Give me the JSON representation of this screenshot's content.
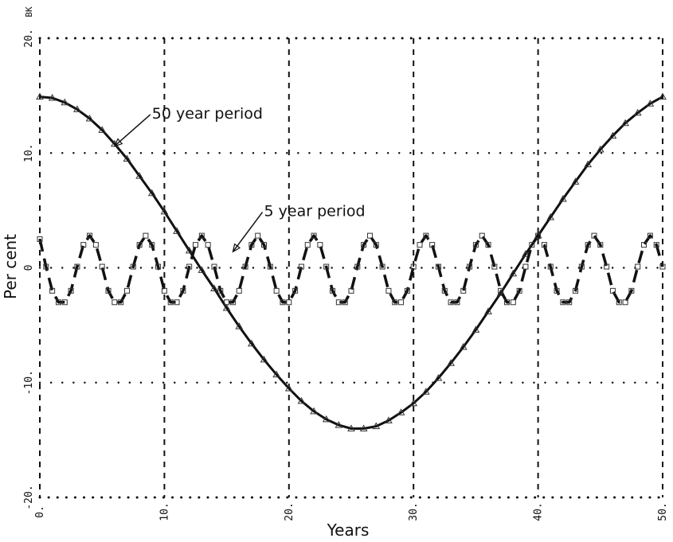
{
  "chart_data": {
    "type": "line",
    "title": "",
    "xlabel": "Years",
    "ylabel": "Per cent",
    "corner_label": "BK",
    "xlim": [
      0,
      50
    ],
    "ylim": [
      -20,
      20
    ],
    "x_ticks": [
      {
        "value": 0,
        "label": "0."
      },
      {
        "value": 10,
        "label": "10."
      },
      {
        "value": 20,
        "label": "20."
      },
      {
        "value": 30,
        "label": "30."
      },
      {
        "value": 40,
        "label": "40."
      },
      {
        "value": 50,
        "label": "50."
      }
    ],
    "y_ticks": [
      {
        "value": 20,
        "label": "20."
      },
      {
        "value": 10,
        "label": "10."
      },
      {
        "value": 0,
        "label": "0"
      },
      {
        "value": -10,
        "label": "-10."
      },
      {
        "value": -20,
        "label": "-20."
      }
    ],
    "grid": true,
    "series": [
      {
        "name": "50 year period",
        "style": "solid",
        "marker": "triangle",
        "x": [
          0,
          1,
          2,
          3,
          4,
          5,
          6,
          7,
          8,
          9,
          10,
          11,
          12,
          13,
          14,
          15,
          16,
          17,
          18,
          19,
          20,
          21,
          22,
          23,
          24,
          25,
          26,
          27,
          28,
          29,
          30,
          31,
          32,
          33,
          34,
          35,
          36,
          37,
          38,
          39,
          40,
          41,
          42,
          43,
          44,
          45,
          46,
          47,
          48,
          49,
          50
        ],
        "y": [
          14.9,
          14.8,
          14.4,
          13.8,
          13.0,
          12.0,
          10.8,
          9.5,
          8.0,
          6.5,
          4.9,
          3.2,
          1.5,
          -0.2,
          -1.8,
          -3.5,
          -5.1,
          -6.6,
          -8.0,
          -9.3,
          -10.5,
          -11.6,
          -12.5,
          -13.2,
          -13.7,
          -14.0,
          -14.0,
          -13.8,
          -13.3,
          -12.6,
          -11.8,
          -10.8,
          -9.6,
          -8.3,
          -6.9,
          -5.4,
          -3.8,
          -2.2,
          -0.5,
          1.2,
          2.8,
          4.4,
          6.0,
          7.5,
          9.0,
          10.3,
          11.5,
          12.6,
          13.5,
          14.3,
          14.9
        ]
      },
      {
        "name": "5 year period",
        "style": "dashed",
        "marker": "square",
        "x": [
          0,
          0.5,
          1,
          1.5,
          2,
          2.5,
          3,
          3.5,
          4,
          4.5,
          5,
          5.5,
          6,
          6.5,
          7,
          7.5,
          8,
          8.5,
          9,
          9.5,
          10,
          10.5,
          11,
          11.5,
          12,
          12.5,
          13,
          13.5,
          14,
          14.5,
          15,
          15.5,
          16,
          16.5,
          17,
          17.5,
          18,
          18.5,
          19,
          19.5,
          20,
          20.5,
          21,
          21.5,
          22,
          22.5,
          23,
          23.5,
          24,
          24.5,
          25,
          25.5,
          26,
          26.5,
          27,
          27.5,
          28,
          28.5,
          29,
          29.5,
          30,
          30.5,
          31,
          31.5,
          32,
          32.5,
          33,
          33.5,
          34,
          34.5,
          35,
          35.5,
          36,
          36.5,
          37,
          37.5,
          38,
          38.5,
          39,
          39.5,
          40,
          40.5,
          41,
          41.5,
          42,
          42.5,
          43,
          43.5,
          44,
          44.5,
          45,
          45.5,
          46,
          46.5,
          47,
          47.5,
          48,
          48.5,
          49,
          49.5,
          50
        ],
        "y": [
          2.5,
          0.1,
          -2.0,
          -3.0,
          -3.0,
          -2.0,
          0.1,
          2.0,
          2.8,
          2.0,
          0.1,
          -2.0,
          -3.0,
          -3.0,
          -2.0,
          0.1,
          2.0,
          2.8,
          2.0,
          0.1,
          -2.0,
          -3.0,
          -3.0,
          -2.0,
          0.1,
          2.0,
          2.8,
          2.0,
          0.1,
          -2.0,
          -3.0,
          -3.0,
          -2.0,
          0.1,
          2.0,
          2.8,
          2.0,
          0.1,
          -2.0,
          -3.0,
          -3.0,
          -2.0,
          0.1,
          2.0,
          2.8,
          2.0,
          0.1,
          -2.0,
          -3.0,
          -3.0,
          -2.0,
          0.1,
          2.0,
          2.8,
          2.0,
          0.1,
          -2.0,
          -3.0,
          -3.0,
          -2.0,
          0.1,
          2.0,
          2.8,
          2.0,
          0.1,
          -2.0,
          -3.0,
          -3.0,
          -2.0,
          0.1,
          2.0,
          2.8,
          2.0,
          0.1,
          -2.0,
          -3.0,
          -3.0,
          -2.0,
          0.1,
          2.0,
          2.8,
          2.0,
          0.1,
          -2.0,
          -3.0,
          -3.0,
          -2.0,
          0.1,
          2.0,
          2.8,
          2.0,
          0.1,
          -2.0,
          -3.0,
          -3.0,
          -2.0,
          0.1,
          2.0,
          2.8,
          2.0,
          0.1
        ]
      }
    ],
    "annotations": [
      {
        "text": "50 year period",
        "x": 9.0,
        "y": 13.0,
        "target_x": 6.0,
        "target_y": 10.6
      },
      {
        "text": "5 year period",
        "x": 18.0,
        "y": 4.5,
        "target_x": 15.5,
        "target_y": 1.4
      }
    ]
  }
}
